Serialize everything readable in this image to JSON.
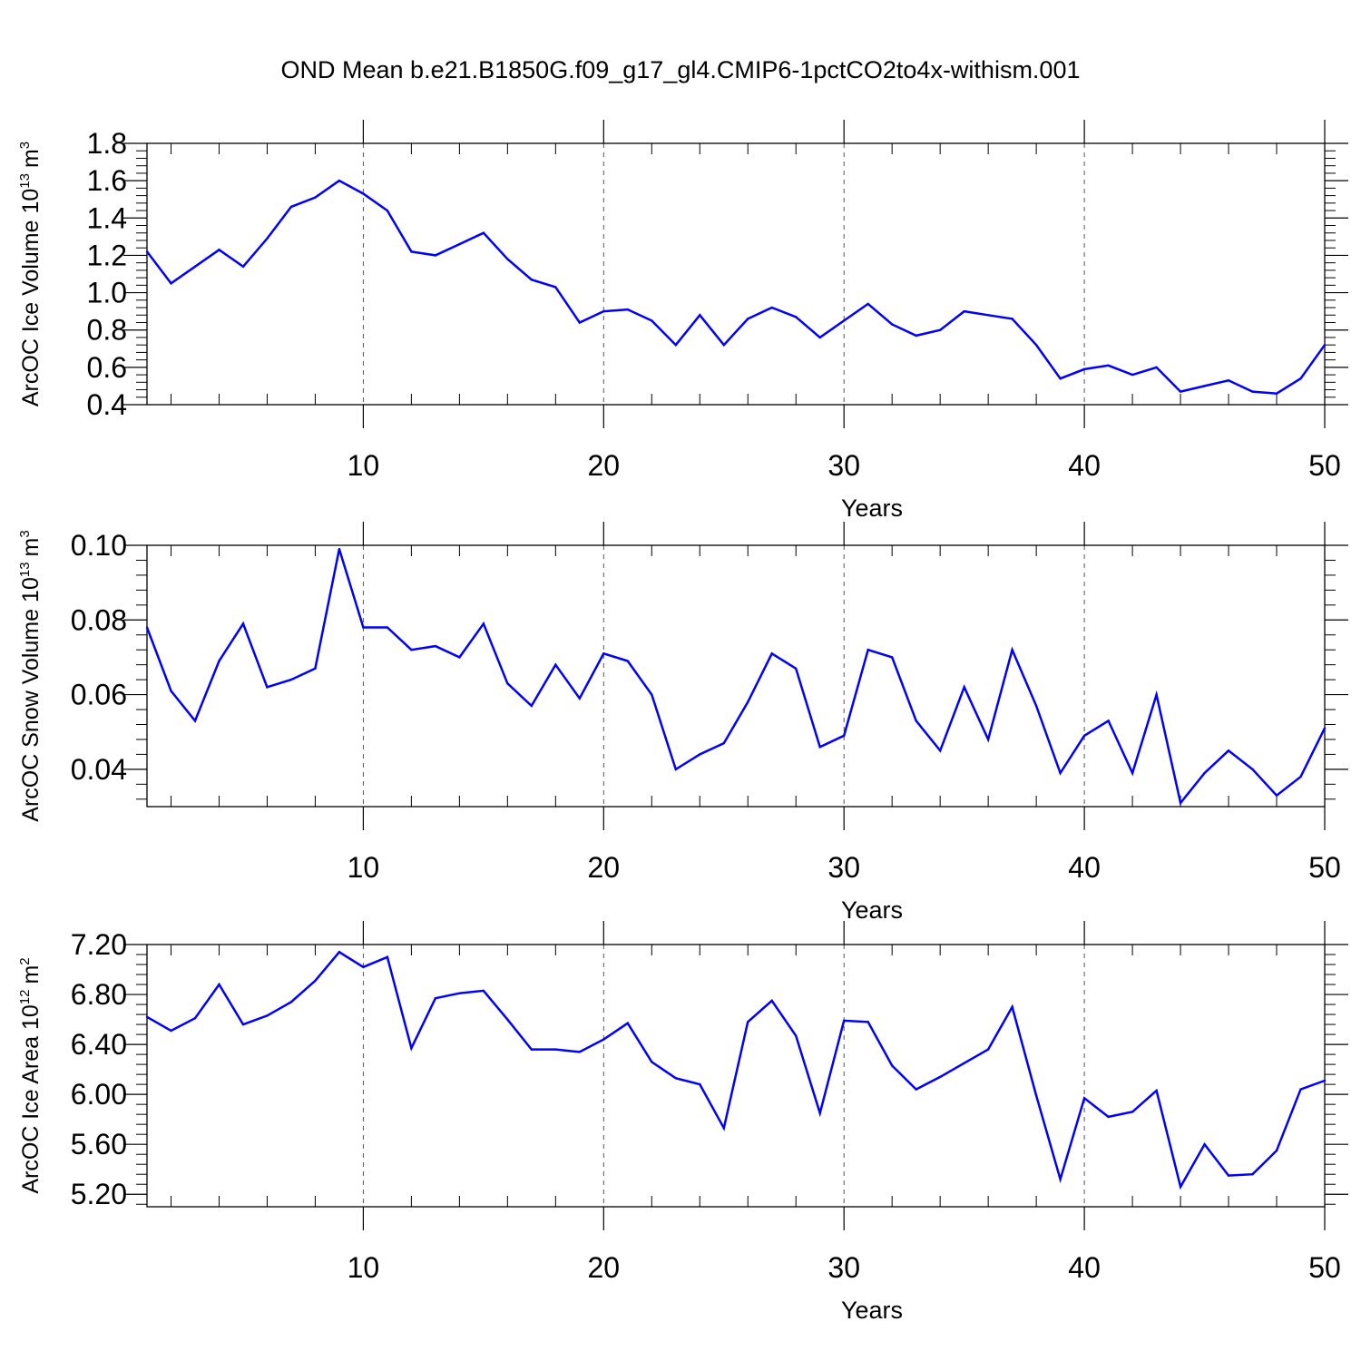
{
  "title": "OND Mean b.e21.B1850G.f09_g17_gl4.CMIP6-1pctCO2to4x-withism.001",
  "colors": {
    "line": "#0000ff",
    "axis": "#000000",
    "grid": "#555555"
  },
  "chart_data": [
    {
      "type": "line",
      "ylabel_main": "ArcOC Ice Volume 10",
      "ylabel_exp": "13",
      "ylabel_unit": "m",
      "ylabel_unit_exp": "3",
      "xlabel": "Years",
      "xlim": [
        1,
        50
      ],
      "ylim": [
        0.4,
        1.8
      ],
      "xticks": [
        10,
        20,
        30,
        40,
        50
      ],
      "yticks": [
        "0.4",
        "0.6",
        "0.8",
        "1.0",
        "1.2",
        "1.4",
        "1.6",
        "1.8"
      ],
      "grid_x": [
        10,
        20,
        30,
        40
      ],
      "x": [
        1,
        2,
        3,
        4,
        5,
        6,
        7,
        8,
        9,
        10,
        11,
        12,
        13,
        14,
        15,
        16,
        17,
        18,
        19,
        20,
        21,
        22,
        23,
        24,
        25,
        26,
        27,
        28,
        29,
        30,
        31,
        32,
        33,
        34,
        35,
        36,
        37,
        38,
        39,
        40,
        41,
        42,
        43,
        44,
        45,
        46,
        47,
        48,
        49,
        50
      ],
      "values": [
        1.22,
        1.05,
        1.14,
        1.23,
        1.14,
        1.29,
        1.46,
        1.51,
        1.6,
        1.53,
        1.44,
        1.22,
        1.2,
        1.26,
        1.32,
        1.18,
        1.07,
        1.03,
        0.84,
        0.9,
        0.91,
        0.85,
        0.72,
        0.88,
        0.72,
        0.86,
        0.92,
        0.87,
        0.76,
        0.85,
        0.94,
        0.83,
        0.77,
        0.8,
        0.9,
        0.88,
        0.86,
        0.72,
        0.54,
        0.59,
        0.61,
        0.56,
        0.6,
        0.47,
        0.5,
        0.53,
        0.47,
        0.46,
        0.54,
        0.72
      ]
    },
    {
      "type": "line",
      "ylabel_main": "ArcOC Snow Volume 10",
      "ylabel_exp": "13",
      "ylabel_unit": "m",
      "ylabel_unit_exp": "3",
      "xlabel": "Years",
      "xlim": [
        1,
        50
      ],
      "ylim": [
        0.03,
        0.1
      ],
      "xticks": [
        10,
        20,
        30,
        40,
        50
      ],
      "yticks": [
        "0.04",
        "0.06",
        "0.08",
        "0.10"
      ],
      "grid_x": [
        10,
        20,
        30,
        40
      ],
      "x": [
        1,
        2,
        3,
        4,
        5,
        6,
        7,
        8,
        9,
        10,
        11,
        12,
        13,
        14,
        15,
        16,
        17,
        18,
        19,
        20,
        21,
        22,
        23,
        24,
        25,
        26,
        27,
        28,
        29,
        30,
        31,
        32,
        33,
        34,
        35,
        36,
        37,
        38,
        39,
        40,
        41,
        42,
        43,
        44,
        45,
        46,
        47,
        48,
        49,
        50
      ],
      "values": [
        0.078,
        0.061,
        0.053,
        0.069,
        0.079,
        0.062,
        0.064,
        0.067,
        0.099,
        0.078,
        0.078,
        0.072,
        0.073,
        0.07,
        0.079,
        0.063,
        0.057,
        0.068,
        0.059,
        0.071,
        0.069,
        0.06,
        0.04,
        0.044,
        0.047,
        0.058,
        0.071,
        0.067,
        0.046,
        0.049,
        0.072,
        0.07,
        0.053,
        0.045,
        0.062,
        0.048,
        0.072,
        0.057,
        0.039,
        0.049,
        0.053,
        0.039,
        0.06,
        0.031,
        0.039,
        0.045,
        0.04,
        0.033,
        0.038,
        0.051
      ]
    },
    {
      "type": "line",
      "ylabel_main": "ArcOC Ice Area 10",
      "ylabel_exp": "12",
      "ylabel_unit": "m",
      "ylabel_unit_exp": "2",
      "xlabel": "Years",
      "xlim": [
        1,
        50
      ],
      "ylim": [
        5.1,
        7.2
      ],
      "xticks": [
        10,
        20,
        30,
        40,
        50
      ],
      "yticks": [
        "5.20",
        "5.60",
        "6.00",
        "6.40",
        "6.80",
        "7.20"
      ],
      "grid_x": [
        10,
        20,
        30,
        40
      ],
      "x": [
        1,
        2,
        3,
        4,
        5,
        6,
        7,
        8,
        9,
        10,
        11,
        12,
        13,
        14,
        15,
        16,
        17,
        18,
        19,
        20,
        21,
        22,
        23,
        24,
        25,
        26,
        27,
        28,
        29,
        30,
        31,
        32,
        33,
        34,
        35,
        36,
        37,
        38,
        39,
        40,
        41,
        42,
        43,
        44,
        45,
        46,
        47,
        48,
        49,
        50
      ],
      "values": [
        6.62,
        6.51,
        6.61,
        6.88,
        6.56,
        6.63,
        6.74,
        6.91,
        7.14,
        7.02,
        7.1,
        6.37,
        6.77,
        6.81,
        6.83,
        6.6,
        6.36,
        6.36,
        6.34,
        6.44,
        6.57,
        6.26,
        6.13,
        6.08,
        5.73,
        6.58,
        6.75,
        6.47,
        5.85,
        6.59,
        6.58,
        6.23,
        6.04,
        6.14,
        6.25,
        6.36,
        6.7,
        5.99,
        5.32,
        5.97,
        5.82,
        5.86,
        6.03,
        5.26,
        5.6,
        5.35,
        5.36,
        5.55,
        6.04,
        6.11
      ]
    }
  ]
}
